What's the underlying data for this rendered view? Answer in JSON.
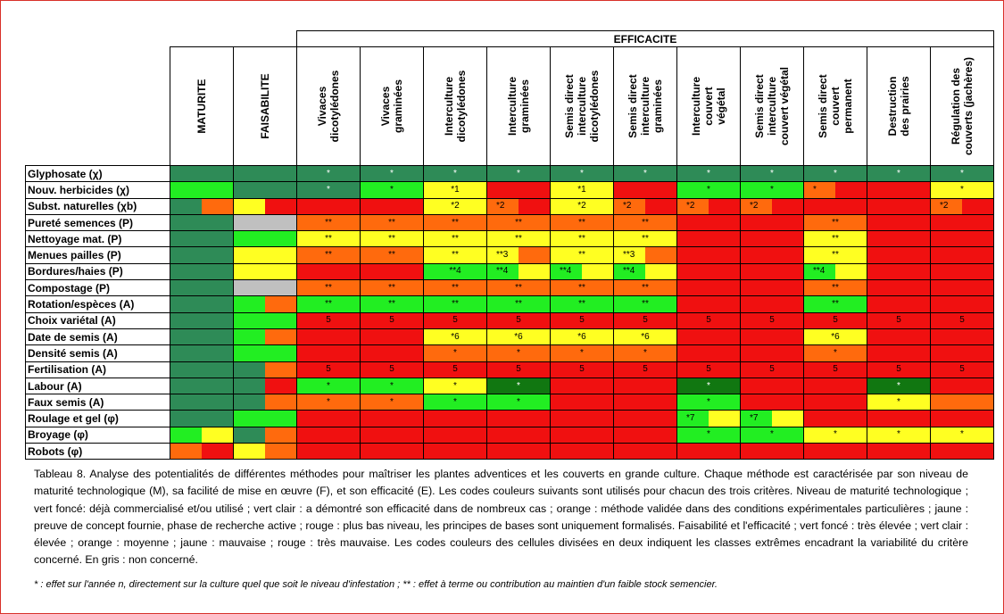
{
  "colors": {
    "G": "#2e8b57",
    "L": "#22ee22",
    "Y": "#ffff22",
    "O": "#ff6a0d",
    "R": "#f01010",
    "S": "#c0c0c0",
    "D": "#117711"
  },
  "table": {
    "group_header": "EFFICACITE",
    "columns": [
      {
        "label": "MATURITE",
        "bold": true
      },
      {
        "label": "FAISABILITE",
        "bold": true
      },
      {
        "label": "Vivaces\ndicotylédones",
        "bold": false
      },
      {
        "label": "Vivaces\ngraminées",
        "bold": false
      },
      {
        "label": "Interculture\ndicotylédones",
        "bold": false
      },
      {
        "label": "Interculture\ngraminées",
        "bold": false
      },
      {
        "label": "Semis direct\ninterculture\ndicotylédones",
        "bold": false
      },
      {
        "label": "Semis direct\ninterculture\ngraminées",
        "bold": false
      },
      {
        "label": "Interculture\ncouvert\nvégétal",
        "bold": false
      },
      {
        "label": "Semis direct\ninterculture\ncouvert végétal",
        "bold": false
      },
      {
        "label": "Semis direct\ncouvert\npermanent",
        "bold": false
      },
      {
        "label": "Destruction\ndes prairies",
        "bold": false
      },
      {
        "label": "Régulation des\ncouverts (jachères)",
        "bold": false
      }
    ],
    "rows": [
      {
        "label": "Glyphosate (χ)",
        "cells": [
          [
            "G"
          ],
          [
            "G"
          ],
          [
            "G",
            "*"
          ],
          [
            "G",
            "*"
          ],
          [
            "G",
            "*"
          ],
          [
            "G",
            "*"
          ],
          [
            "G",
            "*"
          ],
          [
            "G",
            "*"
          ],
          [
            "G",
            "*"
          ],
          [
            "G",
            "*"
          ],
          [
            "G",
            "*"
          ],
          [
            "G",
            "*"
          ],
          [
            "G",
            "*"
          ]
        ]
      },
      {
        "label": "Nouv. herbicides (χ)",
        "cells": [
          [
            "L"
          ],
          [
            "G"
          ],
          [
            "G",
            "*"
          ],
          [
            "L",
            "*"
          ],
          [
            "Y",
            "*1"
          ],
          [
            "R"
          ],
          [
            "Y",
            "*1"
          ],
          [
            "R"
          ],
          [
            "L",
            "*"
          ],
          [
            "L",
            "*"
          ],
          [
            "O|R",
            "*"
          ],
          [
            "R"
          ],
          [
            "Y",
            "*"
          ]
        ]
      },
      {
        "label": "Subst. naturelles (χb)",
        "cells": [
          [
            "G|O"
          ],
          [
            "Y|R"
          ],
          [
            "R"
          ],
          [
            "R"
          ],
          [
            "Y",
            "*2"
          ],
          [
            "O|R",
            "*2"
          ],
          [
            "Y",
            "*2"
          ],
          [
            "O|R",
            "*2"
          ],
          [
            "O|R",
            "*2"
          ],
          [
            "O|R",
            "*2"
          ],
          [
            "R"
          ],
          [
            "R"
          ],
          [
            "O|R",
            "*2"
          ]
        ]
      },
      {
        "label": "Pureté semences (P)",
        "cells": [
          [
            "G"
          ],
          [
            "S"
          ],
          [
            "O",
            "**"
          ],
          [
            "O",
            "**"
          ],
          [
            "O",
            "**"
          ],
          [
            "O",
            "**"
          ],
          [
            "O",
            "**"
          ],
          [
            "O",
            "**"
          ],
          [
            "R"
          ],
          [
            "R"
          ],
          [
            "O",
            "**"
          ],
          [
            "R"
          ],
          [
            "R"
          ]
        ]
      },
      {
        "label": "Nettoyage mat. (P)",
        "cells": [
          [
            "G"
          ],
          [
            "L"
          ],
          [
            "Y",
            "**"
          ],
          [
            "Y",
            "**"
          ],
          [
            "Y",
            "**"
          ],
          [
            "Y",
            "**"
          ],
          [
            "Y",
            "**"
          ],
          [
            "Y",
            "**"
          ],
          [
            "R"
          ],
          [
            "R"
          ],
          [
            "Y",
            "**"
          ],
          [
            "R"
          ],
          [
            "R"
          ]
        ]
      },
      {
        "label": "Menues pailles (P)",
        "cells": [
          [
            "G"
          ],
          [
            "Y"
          ],
          [
            "O",
            "**"
          ],
          [
            "O",
            "**"
          ],
          [
            "Y",
            "**"
          ],
          [
            "Y|O",
            "**3"
          ],
          [
            "Y",
            "**"
          ],
          [
            "Y|O",
            "**3"
          ],
          [
            "R"
          ],
          [
            "R"
          ],
          [
            "Y",
            "**"
          ],
          [
            "R"
          ],
          [
            "R"
          ]
        ]
      },
      {
        "label": "Bordures/haies (P)",
        "cells": [
          [
            "G"
          ],
          [
            "Y"
          ],
          [
            "R"
          ],
          [
            "R"
          ],
          [
            "L",
            "**4"
          ],
          [
            "L|Y",
            "**4"
          ],
          [
            "L|Y",
            "**4"
          ],
          [
            "L|Y",
            "**4"
          ],
          [
            "R"
          ],
          [
            "R"
          ],
          [
            "L|Y",
            "**4"
          ],
          [
            "R"
          ],
          [
            "R"
          ]
        ]
      },
      {
        "label": "Compostage (P)",
        "cells": [
          [
            "G"
          ],
          [
            "S"
          ],
          [
            "O",
            "**"
          ],
          [
            "O",
            "**"
          ],
          [
            "O",
            "**"
          ],
          [
            "O",
            "**"
          ],
          [
            "O",
            "**"
          ],
          [
            "O",
            "**"
          ],
          [
            "R"
          ],
          [
            "R"
          ],
          [
            "O",
            "**"
          ],
          [
            "R"
          ],
          [
            "R"
          ]
        ]
      },
      {
        "label": "Rotation/espèces (A)",
        "cells": [
          [
            "G"
          ],
          [
            "L|O"
          ],
          [
            "L",
            "**"
          ],
          [
            "L",
            "**"
          ],
          [
            "L",
            "**"
          ],
          [
            "L",
            "**"
          ],
          [
            "L",
            "**"
          ],
          [
            "L",
            "**"
          ],
          [
            "R"
          ],
          [
            "R"
          ],
          [
            "L",
            "**"
          ],
          [
            "R"
          ],
          [
            "R"
          ]
        ]
      },
      {
        "label": "Choix variétal (A)",
        "cells": [
          [
            "G"
          ],
          [
            "L"
          ],
          [
            "R",
            "5"
          ],
          [
            "R",
            "5"
          ],
          [
            "R",
            "5"
          ],
          [
            "R",
            "5"
          ],
          [
            "R",
            "5"
          ],
          [
            "R",
            "5"
          ],
          [
            "R",
            "5"
          ],
          [
            "R",
            "5"
          ],
          [
            "R",
            "5"
          ],
          [
            "R",
            "5"
          ],
          [
            "R",
            "5"
          ]
        ]
      },
      {
        "label": "Date de semis (A)",
        "cells": [
          [
            "G"
          ],
          [
            "L|O"
          ],
          [
            "R"
          ],
          [
            "R"
          ],
          [
            "Y",
            "*6"
          ],
          [
            "Y",
            "*6"
          ],
          [
            "Y",
            "*6"
          ],
          [
            "Y",
            "*6"
          ],
          [
            "R"
          ],
          [
            "R"
          ],
          [
            "Y",
            "*6"
          ],
          [
            "R"
          ],
          [
            "R"
          ]
        ]
      },
      {
        "label": "Densité semis (A)",
        "cells": [
          [
            "G"
          ],
          [
            "L"
          ],
          [
            "R"
          ],
          [
            "R"
          ],
          [
            "O",
            "*"
          ],
          [
            "O",
            "*"
          ],
          [
            "O",
            "*"
          ],
          [
            "O",
            "*"
          ],
          [
            "R"
          ],
          [
            "R"
          ],
          [
            "O",
            "*"
          ],
          [
            "R"
          ],
          [
            "R"
          ]
        ]
      },
      {
        "label": "Fertilisation (A)",
        "cells": [
          [
            "G"
          ],
          [
            "G|O"
          ],
          [
            "R",
            "5"
          ],
          [
            "R",
            "5"
          ],
          [
            "R",
            "5"
          ],
          [
            "R",
            "5"
          ],
          [
            "R",
            "5"
          ],
          [
            "R",
            "5"
          ],
          [
            "R",
            "5"
          ],
          [
            "R",
            "5"
          ],
          [
            "R",
            "5"
          ],
          [
            "R",
            "5"
          ],
          [
            "R",
            "5"
          ]
        ]
      },
      {
        "label": "Labour (A)",
        "cells": [
          [
            "G"
          ],
          [
            "G|R"
          ],
          [
            "L",
            "*"
          ],
          [
            "L",
            "*"
          ],
          [
            "Y",
            "*"
          ],
          [
            "D",
            "*"
          ],
          [
            "R"
          ],
          [
            "R"
          ],
          [
            "D",
            "*"
          ],
          [
            "R"
          ],
          [
            "R"
          ],
          [
            "D",
            "*"
          ],
          [
            "R"
          ]
        ]
      },
      {
        "label": "Faux semis (A)",
        "cells": [
          [
            "G"
          ],
          [
            "G|O"
          ],
          [
            "O",
            "*"
          ],
          [
            "O",
            "*"
          ],
          [
            "L",
            "*"
          ],
          [
            "L",
            "*"
          ],
          [
            "R"
          ],
          [
            "R"
          ],
          [
            "L",
            "*"
          ],
          [
            "R"
          ],
          [
            "R"
          ],
          [
            "Y",
            "*"
          ],
          [
            "O"
          ]
        ]
      },
      {
        "label": "Roulage et gel (φ)",
        "cells": [
          [
            "G"
          ],
          [
            "L"
          ],
          [
            "R"
          ],
          [
            "R"
          ],
          [
            "R"
          ],
          [
            "R"
          ],
          [
            "R"
          ],
          [
            "R"
          ],
          [
            "L|Y",
            "*7"
          ],
          [
            "L|Y",
            "*7"
          ],
          [
            "R"
          ],
          [
            "R"
          ],
          [
            "R"
          ]
        ]
      },
      {
        "label": "Broyage (φ)",
        "cells": [
          [
            "L|Y"
          ],
          [
            "G|O"
          ],
          [
            "R"
          ],
          [
            "R"
          ],
          [
            "R"
          ],
          [
            "R"
          ],
          [
            "R"
          ],
          [
            "R"
          ],
          [
            "L",
            "*"
          ],
          [
            "L",
            "*"
          ],
          [
            "Y",
            "*"
          ],
          [
            "Y",
            "*"
          ],
          [
            "Y",
            "*"
          ]
        ]
      },
      {
        "label": "Robots (φ)",
        "cells": [
          [
            "O|R"
          ],
          [
            "Y|O"
          ],
          [
            "R"
          ],
          [
            "R"
          ],
          [
            "R"
          ],
          [
            "R"
          ],
          [
            "R"
          ],
          [
            "R"
          ],
          [
            "R"
          ],
          [
            "R"
          ],
          [
            "R"
          ],
          [
            "R"
          ],
          [
            "R"
          ]
        ]
      }
    ]
  },
  "caption": "Tableau 8. Analyse des potentialités de différentes méthodes pour maîtriser les plantes adventices et les couverts en grande culture. Chaque méthode est caractérisée par son niveau de maturité technologique (M), sa facilité de mise en œuvre (F), et son efficacité (E). Les codes couleurs suivants sont utilisés pour chacun des trois critères. Niveau de maturité technologique ; vert foncé: déjà commercialisé et/ou utilisé ; vert clair : a démontré son efficacité dans de nombreux cas ; orange : méthode validée dans des conditions expérimentales particulières ; jaune : preuve de concept fournie, phase de recherche active ; rouge : plus bas niveau, les principes de bases sont uniquement formalisés. Faisabilité et l'efficacité ; vert foncé : très élevée ; vert clair : élevée ; orange : moyenne ; jaune : mauvaise ; rouge : très mauvaise. Les codes couleurs des cellules divisées en deux indiquent les classes extrêmes encadrant la variabilité du critère concerné. En gris : non concerné.",
  "footnote": "* : effet sur l'année n, directement sur la culture quel que soit le niveau d'infestation ; ** : effet à terme ou contribution au maintien d'un faible stock semencier."
}
